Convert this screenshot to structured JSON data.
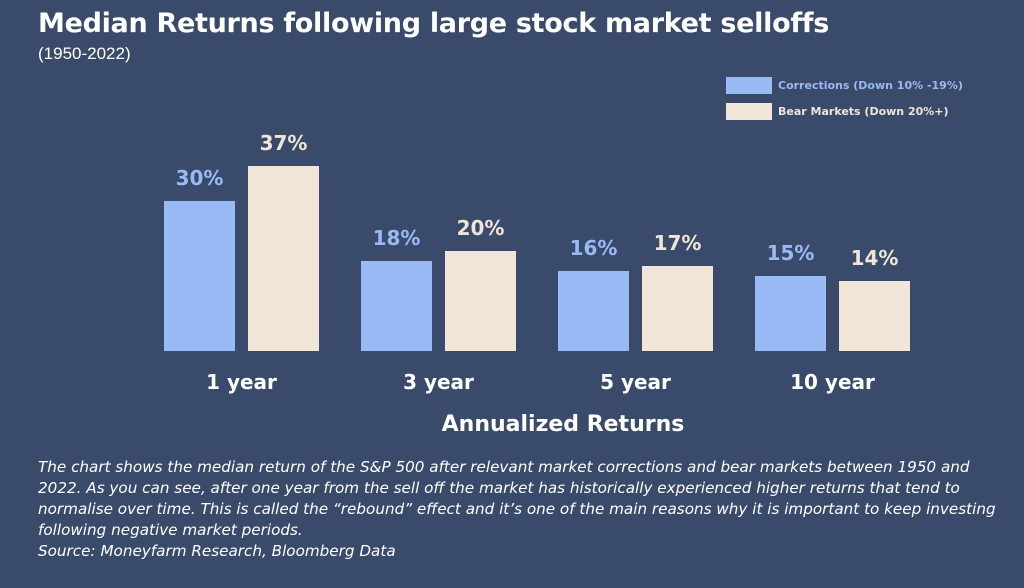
{
  "header": {
    "title": "Median Returns following large stock market selloffs",
    "subtitle": "(1950-2022)"
  },
  "colors": {
    "background": "#3a4a6b",
    "corrections": "#9abaf5",
    "bear_markets": "#f0e5d6"
  },
  "chart_data": {
    "type": "bar",
    "title": "Median Returns following large stock market selloffs",
    "subtitle": "(1950-2022)",
    "xlabel": "Annualized Returns",
    "ylabel": "",
    "categories": [
      "1 year",
      "3 year",
      "5 year",
      "10 year"
    ],
    "series": [
      {
        "name": "Corrections (Down 10% -19%)",
        "values": [
          30,
          18,
          16,
          15
        ],
        "labels": [
          "30%",
          "18%",
          "16%",
          "15%"
        ],
        "color": "#9abaf5"
      },
      {
        "name": "Bear Markets (Down 20%+)",
        "values": [
          37,
          20,
          17,
          14
        ],
        "labels": [
          "37%",
          "20%",
          "17%",
          "14%"
        ],
        "color": "#f0e5d6"
      }
    ],
    "legend_position": "top-right",
    "grid": false
  },
  "caption": {
    "text": "The chart shows the median return of the S&P 500 after relevant market corrections and bear markets between 1950 and 2022. As you can see, after one year from the sell off the market has historically experienced higher returns that tend to normalise over time. This is called the “rebound” effect and it’s one of the main reasons why it is important to keep investing following negative market periods.",
    "source": "Source: Moneyfarm Research, Bloomberg Data"
  }
}
